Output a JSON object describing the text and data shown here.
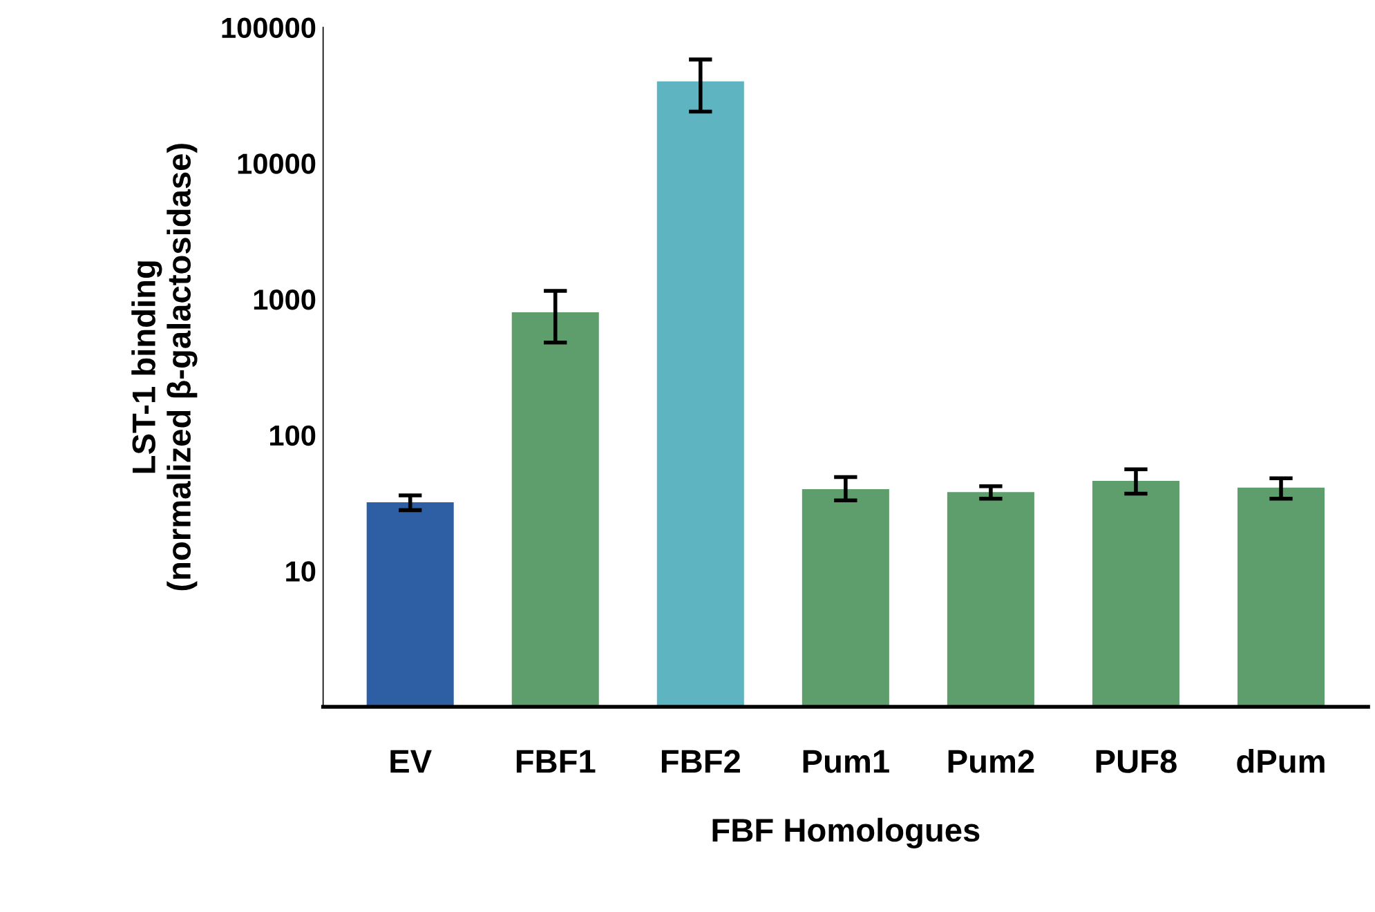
{
  "chart_data": {
    "type": "bar",
    "xlabel": "FBF Homologues",
    "ylabel": "LST-1 binding\n(normalized β-galactosidase)",
    "categories": [
      "EV",
      "FBF1",
      "FBF2",
      "Pum1",
      "Pum2",
      "PUF8",
      "dPum"
    ],
    "values": [
      32,
      800,
      40000,
      40,
      38,
      46,
      41
    ],
    "colors": [
      "#2e5ea3",
      "#5e9d6c",
      "#5fb4c2",
      "#5e9d6c",
      "#5e9d6c",
      "#5e9d6c",
      "#5e9d6c"
    ],
    "errors": [
      [
        28,
        36
      ],
      [
        480,
        1150
      ],
      [
        24000,
        58000
      ],
      [
        33,
        49
      ],
      [
        34,
        42
      ],
      [
        37,
        56
      ],
      [
        34,
        48
      ]
    ],
    "log": "y",
    "ylim": [
      1,
      100000
    ],
    "yticks": [
      10,
      100,
      1000,
      10000,
      100000
    ],
    "grid": false,
    "legend": false
  }
}
